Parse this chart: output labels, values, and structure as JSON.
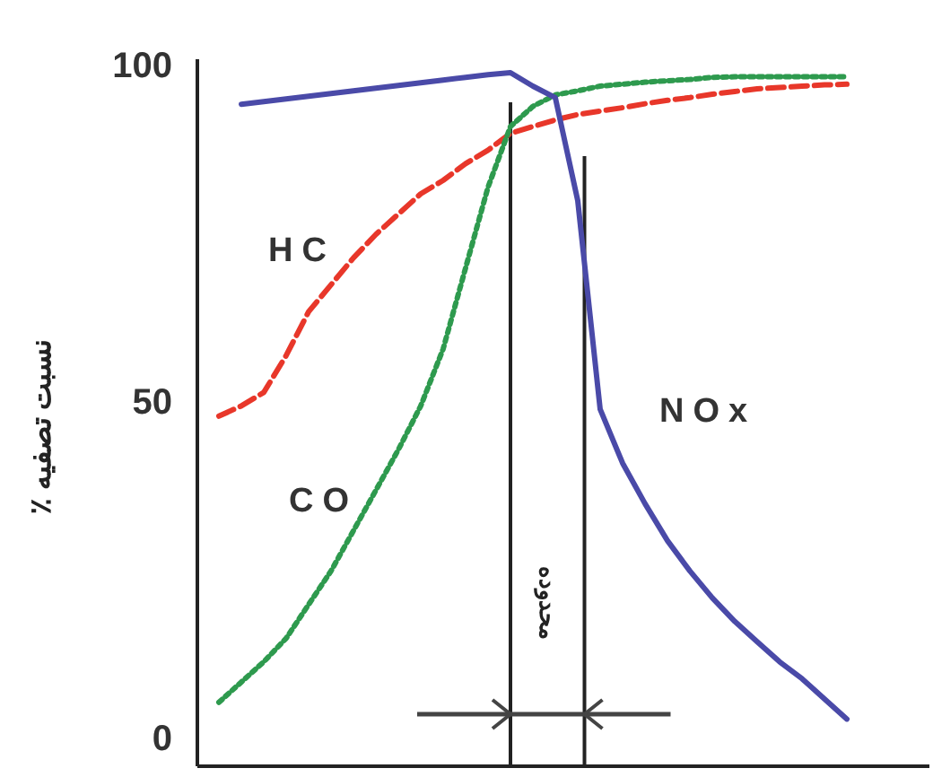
{
  "chart_data": {
    "type": "line",
    "ylabel": "نسبت تصفیه ٪",
    "categories": [
      null,
      null,
      null,
      null,
      null,
      null,
      null,
      null,
      null,
      null,
      null,
      null,
      null,
      null,
      null,
      null,
      null,
      null,
      null,
      null,
      null,
      null,
      null,
      null,
      null,
      null,
      null,
      null,
      null
    ],
    "ylim": [
      -4,
      101
    ],
    "yticks": [
      0,
      50,
      100
    ],
    "tick_labels": "y",
    "grid": false,
    "series": [
      {
        "name": "HC",
        "color": "#e8372a",
        "line_style": "dashed",
        "values": [
          48,
          49.5,
          51.5,
          57,
          63.5,
          67.5,
          71.5,
          75,
          78,
          81,
          83,
          85.5,
          87.5,
          90,
          91,
          92,
          92.8,
          93.3,
          93.8,
          94.4,
          94.9,
          95.3,
          95.8,
          96.2,
          96.6,
          96.8,
          97,
          97.2,
          97.3
        ]
      },
      {
        "name": "CO",
        "color": "#2e9a4e",
        "line_style": "dotted",
        "values": [
          5.5,
          8.5,
          11.5,
          15,
          20,
          25,
          31,
          37,
          43,
          49.5,
          58,
          70,
          82,
          91,
          94,
          95.7,
          96.3,
          97,
          97.3,
          97.6,
          97.8,
          98,
          98.3,
          98.4,
          98.4,
          98.4,
          98.4,
          98.4,
          98.4
        ]
      },
      {
        "name": "NOx",
        "color": "#4a4aa8",
        "line_style": "solid",
        "values": [
          null,
          94.3,
          94.7,
          95.1,
          95.5,
          95.9,
          96.3,
          96.7,
          97.1,
          97.5,
          97.9,
          98.3,
          98.7,
          99,
          97,
          95.3,
          80,
          49,
          41,
          35,
          29.5,
          25,
          21,
          17.5,
          14.5,
          11.5,
          9,
          6,
          3
        ]
      }
    ],
    "annotations": [
      "محدوده"
    ]
  }
}
